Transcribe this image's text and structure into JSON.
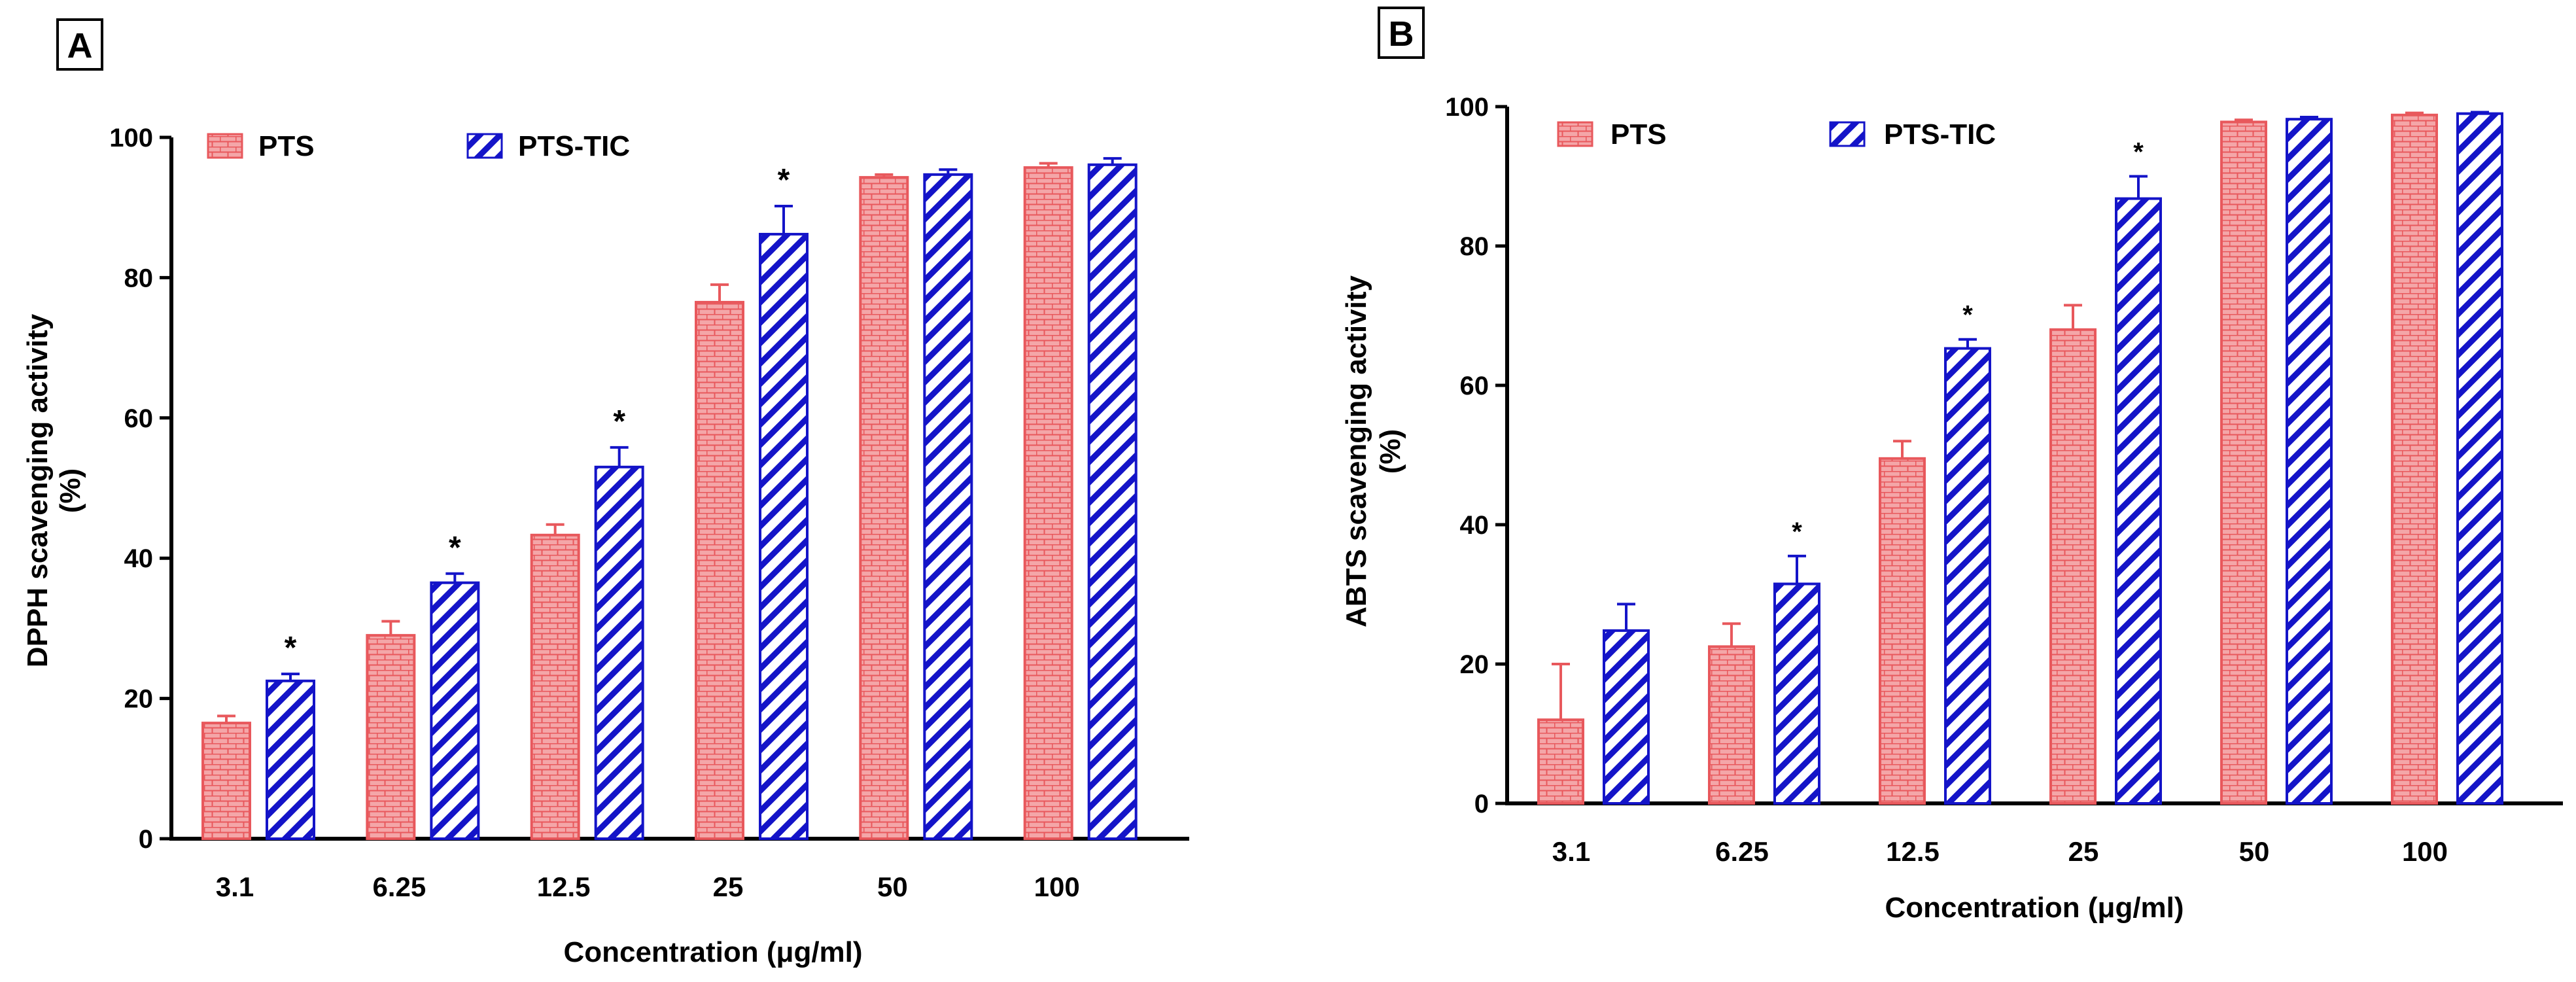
{
  "colors": {
    "pts": "#e8585c",
    "pts_fill": "#f4a6a8",
    "pts_tic": "#1414c8",
    "axis": "#000000"
  },
  "chart_data": [
    {
      "panel": "A",
      "type": "bar",
      "categories": [
        "3.1",
        "6.25",
        "12.5",
        "25",
        "50",
        "100"
      ],
      "series": [
        {
          "name": "PTS",
          "values": [
            16.5,
            29,
            43.3,
            76.5,
            94.3,
            95.7
          ],
          "errors": [
            1.0,
            2.0,
            1.5,
            2.5,
            0.4,
            0.6
          ],
          "pattern": "brick"
        },
        {
          "name": "PTS-TIC",
          "values": [
            22.5,
            36.5,
            53,
            86.2,
            94.7,
            96.1
          ],
          "errors": [
            1.0,
            1.3,
            2.8,
            4.0,
            0.7,
            0.9
          ],
          "pattern": "hatch"
        }
      ],
      "significance": [
        "*",
        "*",
        "*",
        "*",
        "",
        ""
      ],
      "title": "",
      "xlabel": "Concentration (μg/ml)",
      "ylabel_line1": "DPPH scavenging activity",
      "ylabel_line2": "(%)",
      "ylim": [
        0,
        100
      ],
      "yticks": [
        0,
        20,
        40,
        60,
        80,
        100
      ],
      "legend": "top-left"
    },
    {
      "panel": "B",
      "type": "bar",
      "categories": [
        "3.1",
        "6.25",
        "12.5",
        "25",
        "50",
        "100"
      ],
      "series": [
        {
          "name": "PTS",
          "values": [
            12,
            22.5,
            49.5,
            68,
            97.8,
            98.8
          ],
          "errors": [
            8,
            3.3,
            2.5,
            3.5,
            0.3,
            0.3
          ],
          "pattern": "brick"
        },
        {
          "name": "PTS-TIC",
          "values": [
            24.8,
            31.5,
            65.3,
            86.8,
            98.2,
            99
          ],
          "errors": [
            3.8,
            4.0,
            1.3,
            3.2,
            0.3,
            0.2
          ],
          "pattern": "hatch"
        }
      ],
      "significance": [
        "",
        "*",
        "*",
        "*",
        "",
        ""
      ],
      "title": "",
      "xlabel": "Concentration (μg/ml)",
      "ylabel_line1": "ABTS scavenging activity",
      "ylabel_line2": "(%)",
      "ylim": [
        0,
        100
      ],
      "yticks": [
        0,
        20,
        40,
        60,
        80,
        100
      ],
      "legend": "top-left"
    }
  ]
}
